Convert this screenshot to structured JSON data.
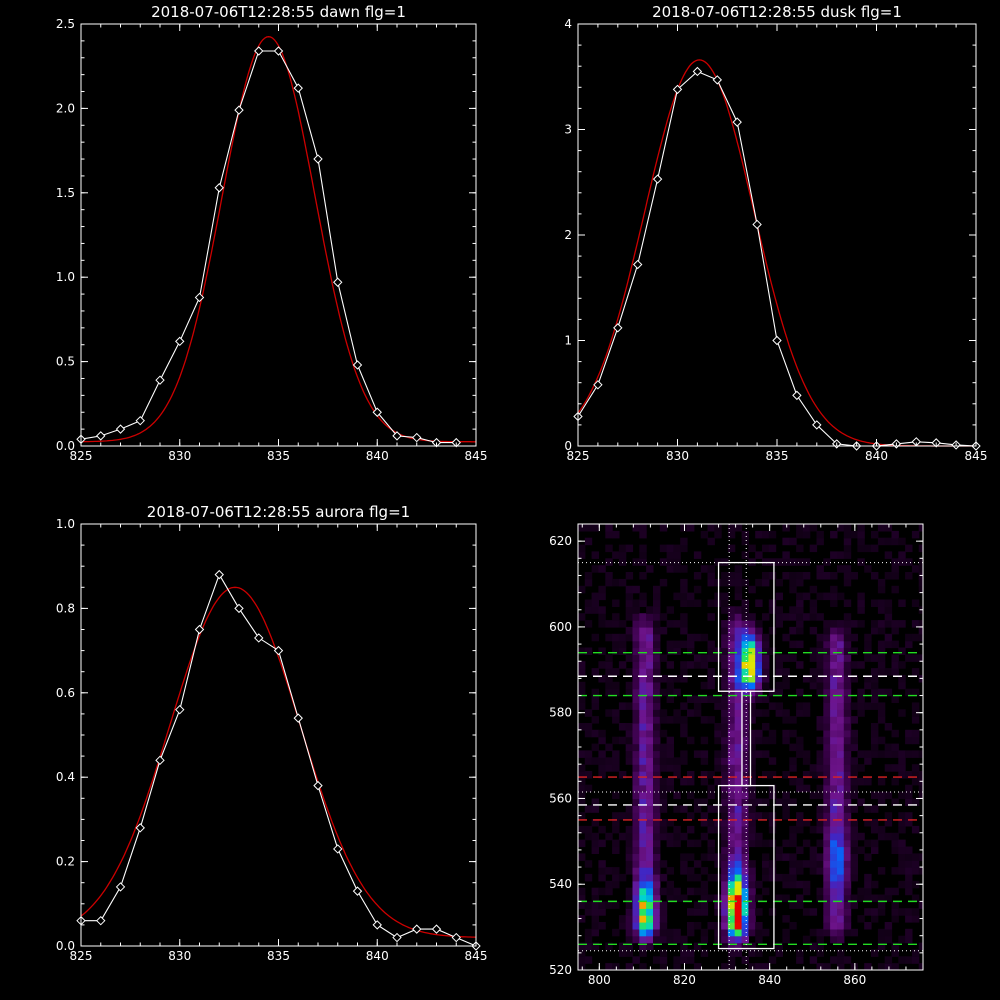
{
  "colors": {
    "background": "#000000",
    "axis": "#ffffff",
    "observed": "#ffffff",
    "fit": "#cc0000"
  },
  "chart_data": [
    {
      "type": "line",
      "title": "2018-07-06T12:28:55 dawn flg=1",
      "xlim": [
        825,
        845
      ],
      "ylim": [
        0,
        2.5
      ],
      "xticks": [
        "825",
        "830",
        "835",
        "840",
        "845"
      ],
      "yticks": [
        "0.0",
        "0.5",
        "1.0",
        "1.5",
        "2.0",
        "2.5"
      ],
      "series": [
        {
          "kind": "observed",
          "marker": "diamond",
          "x": [
            825,
            826,
            827,
            828,
            829,
            830,
            831,
            832,
            833,
            834,
            835,
            836,
            837,
            838,
            839,
            840,
            841,
            842,
            843,
            844
          ],
          "y": [
            0.04,
            0.06,
            0.1,
            0.15,
            0.39,
            0.62,
            0.88,
            1.53,
            1.99,
            2.34,
            2.34,
            2.12,
            1.7,
            0.97,
            0.48,
            0.2,
            0.06,
            0.05,
            0.02,
            0.02
          ]
        },
        {
          "kind": "fit",
          "amplitude": 2.4,
          "center": 834.5,
          "sigma": 2.35,
          "baseline": 0.025
        }
      ]
    },
    {
      "type": "line",
      "title": "2018-07-06T12:28:55 dusk flg=1",
      "xlim": [
        825,
        845
      ],
      "ylim": [
        0,
        4
      ],
      "xticks": [
        "825",
        "830",
        "835",
        "840",
        "845"
      ],
      "yticks": [
        "0",
        "1",
        "2",
        "3",
        "4"
      ],
      "series": [
        {
          "kind": "observed",
          "marker": "diamond",
          "x": [
            825,
            826,
            827,
            828,
            829,
            830,
            831,
            832,
            833,
            834,
            835,
            836,
            837,
            838,
            839,
            840,
            841,
            842,
            843,
            844,
            845
          ],
          "y": [
            0.28,
            0.58,
            1.12,
            1.72,
            2.53,
            3.38,
            3.55,
            3.47,
            3.07,
            2.1,
            1.0,
            0.48,
            0.2,
            0.02,
            0.0,
            0.0,
            0.02,
            0.04,
            0.03,
            0.01,
            0.0
          ]
        },
        {
          "kind": "fit",
          "amplitude": 3.66,
          "center": 831.1,
          "sigma": 2.75,
          "baseline": 0.0
        }
      ]
    },
    {
      "type": "line",
      "title": "2018-07-06T12:28:55 aurora flg=1",
      "xlim": [
        825,
        845
      ],
      "ylim": [
        0,
        1.0
      ],
      "xticks": [
        "825",
        "830",
        "835",
        "840",
        "845"
      ],
      "yticks": [
        "0.0",
        "0.2",
        "0.4",
        "0.6",
        "0.8",
        "1.0"
      ],
      "series": [
        {
          "kind": "observed",
          "marker": "diamond",
          "x": [
            825,
            826,
            827,
            828,
            829,
            830,
            831,
            832,
            833,
            834,
            835,
            836,
            837,
            838,
            839,
            840,
            841,
            842,
            843,
            844,
            845
          ],
          "y": [
            0.06,
            0.06,
            0.14,
            0.28,
            0.44,
            0.56,
            0.75,
            0.88,
            0.8,
            0.73,
            0.7,
            0.54,
            0.38,
            0.23,
            0.13,
            0.05,
            0.02,
            0.04,
            0.04,
            0.02,
            0.0
          ]
        },
        {
          "kind": "fit",
          "amplitude": 0.83,
          "center": 832.8,
          "sigma": 3.3,
          "baseline": 0.02
        }
      ]
    },
    {
      "type": "heatmap",
      "xlim": [
        795,
        876
      ],
      "ylim": [
        520,
        624
      ],
      "xticks": [
        "800",
        "820",
        "840",
        "860"
      ],
      "yticks": [
        "520",
        "540",
        "560",
        "580",
        "600",
        "620"
      ],
      "columns": [
        {
          "x": 810,
          "y_range": [
            527,
            600
          ],
          "peak_y": 533,
          "peak_level": 0.6
        },
        {
          "x": 831.5,
          "y_range": [
            526,
            600
          ],
          "peak_y": 534,
          "peak_level": 1.0
        },
        {
          "x": 834.5,
          "y_range": [
            585,
            597
          ],
          "peak_y": 591,
          "peak_level": 0.65
        },
        {
          "x": 855,
          "y_range": [
            528,
            597
          ],
          "peak_y": 545,
          "peak_level": 0.25
        }
      ],
      "boxes": [
        {
          "x": [
            828,
            841
          ],
          "y": [
            585,
            615
          ]
        },
        {
          "x": [
            828,
            841
          ],
          "y": [
            525,
            563
          ]
        },
        {
          "x": [
            833.5,
            835.5
          ],
          "y": [
            563,
            585
          ]
        }
      ],
      "hlines": [
        {
          "y": 615,
          "color": "#ffffff",
          "style": "dotted"
        },
        {
          "y": 594,
          "color": "#22dd22",
          "style": "dashed"
        },
        {
          "y": 588.5,
          "color": "#ffffff",
          "style": "dashed"
        },
        {
          "y": 584,
          "color": "#22dd22",
          "style": "dashed"
        },
        {
          "y": 565,
          "color": "#dd2222",
          "style": "dashed"
        },
        {
          "y": 561.5,
          "color": "#ffffff",
          "style": "dotted"
        },
        {
          "y": 558.5,
          "color": "#ffffff",
          "style": "dashed"
        },
        {
          "y": 555,
          "color": "#dd2222",
          "style": "dashed"
        },
        {
          "y": 536,
          "color": "#22dd22",
          "style": "dashed"
        },
        {
          "y": 526,
          "color": "#22dd22",
          "style": "dashed"
        },
        {
          "y": 524.5,
          "color": "#ffffff",
          "style": "dotted"
        }
      ],
      "vlines": [
        {
          "x": 830.5,
          "color": "#ffffff",
          "style": "dotted"
        },
        {
          "x": 834.5,
          "color": "#ffffff",
          "style": "dotted"
        }
      ]
    }
  ]
}
